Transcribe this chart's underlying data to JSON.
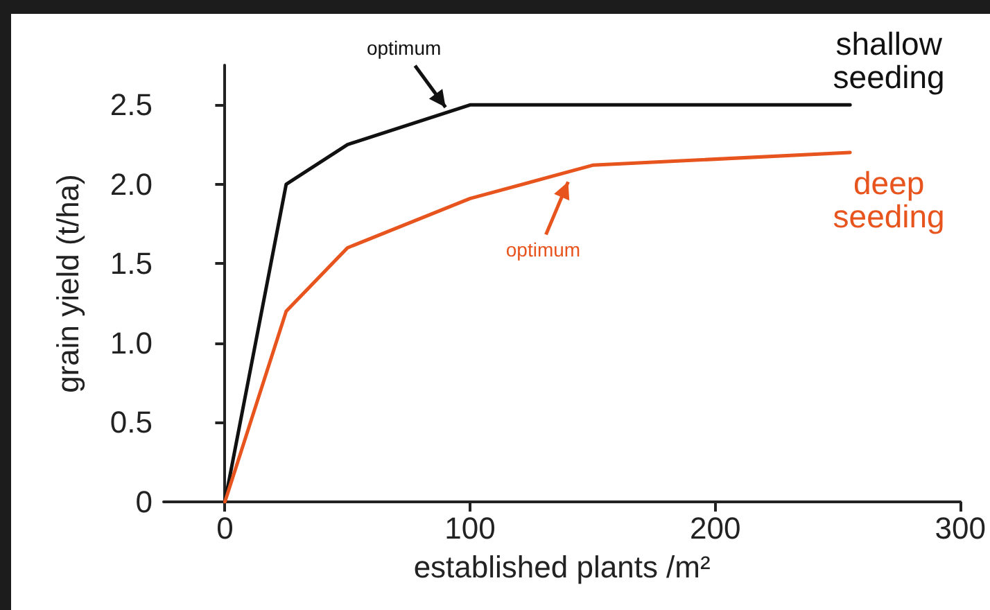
{
  "chart_data": {
    "type": "line",
    "xlabel": "established plants /m²",
    "ylabel": "grain yield (t/ha)",
    "xlim": [
      -25,
      300
    ],
    "xticks": [
      0,
      100,
      200,
      300
    ],
    "ylim": [
      0,
      2.75
    ],
    "yticks": [
      0,
      0.5,
      {
        "value": 1,
        "label": "1.0"
      },
      1.5,
      {
        "value": 2,
        "label": "2.0"
      },
      2.5
    ],
    "grid": false,
    "legend": false,
    "marker": "none",
    "line_style": "solid",
    "series": [
      {
        "name": "shallow seeding",
        "color": "#111111",
        "x": [
          0,
          25,
          50,
          100,
          255
        ],
        "values": [
          0,
          2.0,
          2.25,
          2.5,
          2.5
        ]
      },
      {
        "name": "deep seeding",
        "color": "#e8541e",
        "x": [
          0,
          25,
          50,
          100,
          150,
          255
        ],
        "values": [
          0,
          1.2,
          1.6,
          1.91,
          2.12,
          2.2
        ]
      }
    ],
    "annotations": [
      {
        "text": "optimum",
        "x": 90,
        "y": 2.45
      },
      {
        "text": "optimum",
        "x": 140,
        "y": 2.05
      }
    ]
  }
}
